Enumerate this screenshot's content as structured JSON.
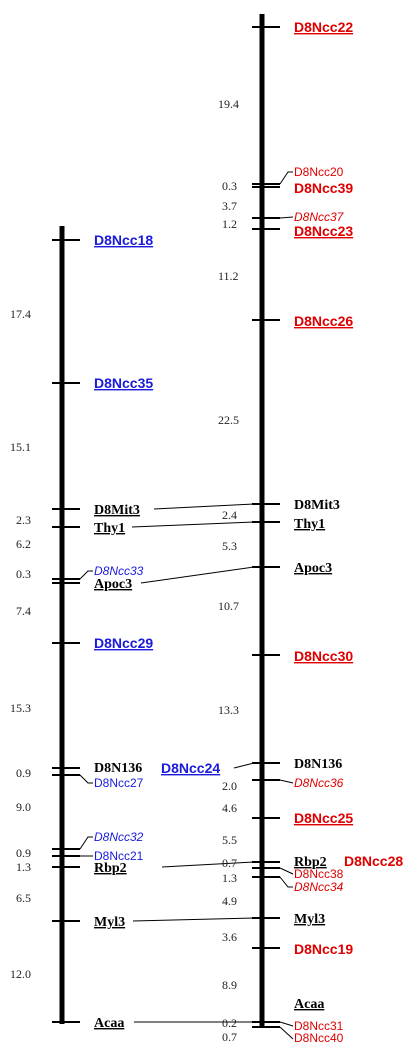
{
  "left_map": {
    "markers": {
      "d8ncc18": "D8Ncc18",
      "d8ncc35": "D8Ncc35",
      "d8mit3": "D8Mit3",
      "thy1": "Thy1",
      "d8ncc33": "D8Ncc33",
      "apoc3": "Apoc3",
      "d8ncc29": "D8Ncc29",
      "d8n136": "D8N136",
      "d8ncc24": "D8Ncc24",
      "d8ncc27": "D8Ncc27",
      "d8ncc32": "D8Ncc32",
      "d8ncc21": "D8Ncc21",
      "rbp2": "Rbp2",
      "myl3": "Myl3",
      "acaa": "Acaa"
    },
    "distances": {
      "d1": "17.4",
      "d2": "15.1",
      "d3": "2.3",
      "d4": "6.2",
      "d5": "0.3",
      "d6": "7.4",
      "d7": "15.3",
      "d8": "0.9",
      "d9": "9.0",
      "d10": "0.9",
      "d11": "1.3",
      "d12": "6.5",
      "d13": "12.0"
    }
  },
  "right_map": {
    "markers": {
      "d8ncc22": "D8Ncc22",
      "d8ncc20": "D8Ncc20",
      "d8ncc39": "D8Ncc39",
      "d8ncc37": "D8Ncc37",
      "d8ncc23": "D8Ncc23",
      "d8ncc26": "D8Ncc26",
      "d8mit3": "D8Mit3",
      "thy1": "Thy1",
      "apoc3": "Apoc3",
      "d8ncc30": "D8Ncc30",
      "d8n136": "D8N136",
      "d8ncc36": "D8Ncc36",
      "d8ncc25": "D8Ncc25",
      "rbp2": "Rbp2",
      "d8ncc28": "D8Ncc28",
      "d8ncc38": "D8Ncc38",
      "d8ncc34": "D8Ncc34",
      "myl3": "Myl3",
      "d8ncc19": "D8Ncc19",
      "acaa": "Acaa",
      "d8ncc31": "D8Ncc31",
      "d8ncc40": "D8Ncc40"
    },
    "distances": {
      "d1": "19.4",
      "d2": "0.3",
      "d3": "3.7",
      "d4": "1.2",
      "d5": "11.2",
      "d6": "22.5",
      "d7": "2.4",
      "d8": "5.3",
      "d9": "10.7",
      "d10": "13.3",
      "d11": "2.0",
      "d12": "4.6",
      "d13": "5.5",
      "d14": "0.7",
      "d15": "1.3",
      "d16": "4.9",
      "d17": "3.6",
      "d18": "8.9",
      "d19": "0.2",
      "d20": "0.7"
    }
  },
  "colors": {
    "axis": "#000000",
    "blue_marker": "#1a1adb",
    "red_marker": "#e00000"
  }
}
